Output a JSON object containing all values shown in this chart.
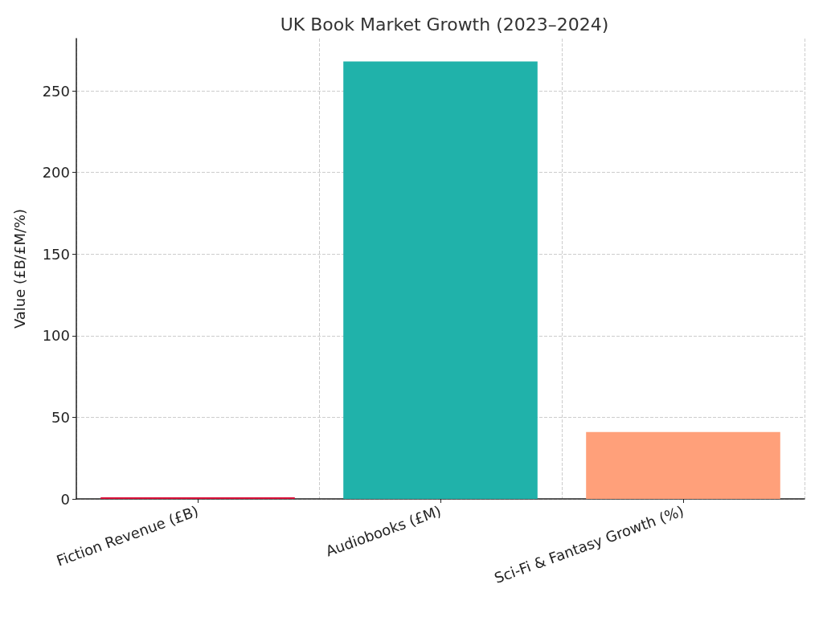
{
  "chart_data": {
    "type": "bar",
    "title": "UK Book Market Growth (2023–2024)",
    "ylabel": "Value (£B/£M/%)",
    "categories": [
      "Fiction Revenue (£B)",
      "Audiobooks (£M)",
      "Sci-Fi & Fantasy Growth (%)"
    ],
    "values": [
      1,
      268,
      41
    ],
    "colors": [
      "#dc143c",
      "#20b2aa",
      "#ffa07a"
    ],
    "ylim": [
      0,
      282
    ],
    "yticks": [
      0,
      50,
      100,
      150,
      200,
      250
    ],
    "grid": true
  }
}
